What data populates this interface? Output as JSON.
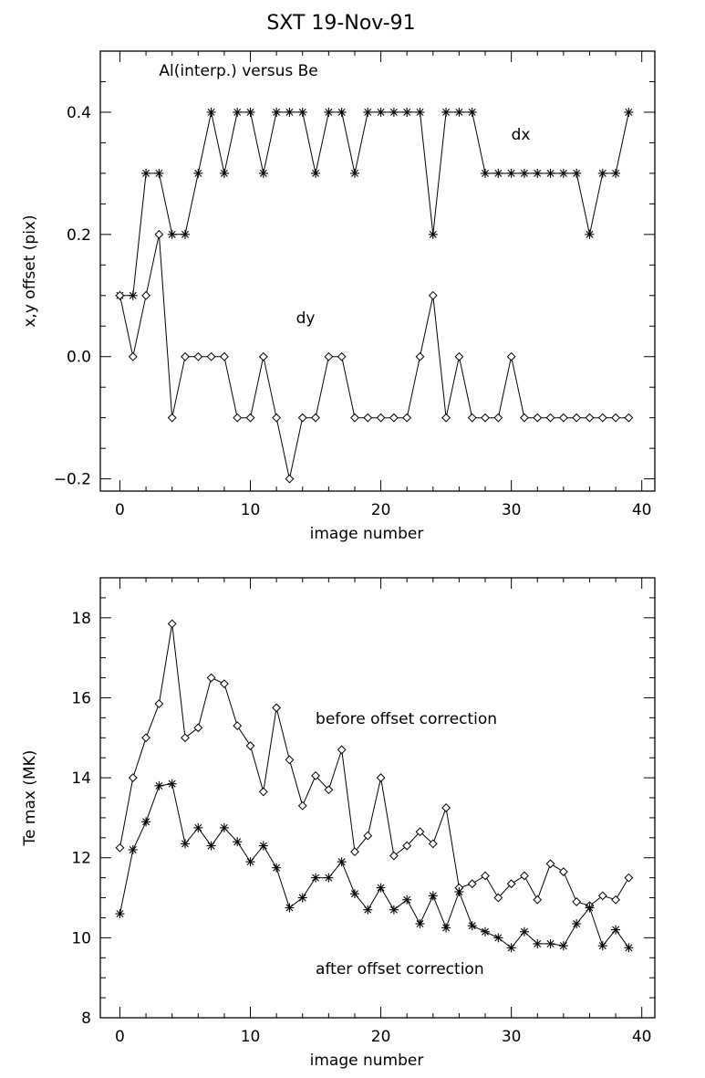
{
  "figure": {
    "title": "SXT   19-Nov-91"
  },
  "chart_data": [
    {
      "type": "line",
      "xlabel": "image number",
      "ylabel": "x,y offset (pix)",
      "xlim": [
        -1.5,
        41
      ],
      "ylim": [
        -0.22,
        0.5
      ],
      "xticks": [
        0,
        10,
        20,
        30,
        40
      ],
      "xtick_labels": [
        "0",
        "10",
        "20",
        "30",
        "40"
      ],
      "yticks": [
        -0.2,
        0.0,
        0.2,
        0.4
      ],
      "ytick_labels": [
        "−0.2",
        "0.0",
        "0.2",
        "0.4"
      ],
      "grid": false,
      "annotations": [
        {
          "text": "Al(interp.) versus Be",
          "x": 3,
          "y": 0.46
        },
        {
          "text": "dx",
          "x": 30,
          "y": 0.355
        },
        {
          "text": "dy",
          "x": 13.5,
          "y": 0.055
        }
      ],
      "series": [
        {
          "name": "dx",
          "marker": "star",
          "x": [
            0,
            1,
            2,
            3,
            4,
            5,
            6,
            7,
            8,
            9,
            10,
            11,
            12,
            13,
            14,
            15,
            16,
            17,
            18,
            19,
            20,
            21,
            22,
            23,
            24,
            25,
            26,
            27,
            28,
            29,
            30,
            31,
            32,
            33,
            34,
            35,
            36,
            37,
            38,
            39
          ],
          "values": [
            0.1,
            0.1,
            0.3,
            0.3,
            0.2,
            0.2,
            0.3,
            0.4,
            0.3,
            0.4,
            0.4,
            0.3,
            0.4,
            0.4,
            0.4,
            0.3,
            0.4,
            0.4,
            0.3,
            0.4,
            0.4,
            0.4,
            0.4,
            0.4,
            0.2,
            0.4,
            0.4,
            0.4,
            0.3,
            0.3,
            0.3,
            0.3,
            0.3,
            0.3,
            0.3,
            0.3,
            0.2,
            0.3,
            0.3,
            0.4
          ]
        },
        {
          "name": "dy",
          "marker": "diamond",
          "x": [
            0,
            1,
            2,
            3,
            4,
            5,
            6,
            7,
            8,
            9,
            10,
            11,
            12,
            13,
            14,
            15,
            16,
            17,
            18,
            19,
            20,
            21,
            22,
            23,
            24,
            25,
            26,
            27,
            28,
            29,
            30,
            31,
            32,
            33,
            34,
            35,
            36,
            37,
            38,
            39
          ],
          "values": [
            0.1,
            0.0,
            0.1,
            0.2,
            -0.1,
            0.0,
            0.0,
            0.0,
            0.0,
            -0.1,
            -0.1,
            0.0,
            -0.1,
            -0.2,
            -0.1,
            -0.1,
            0.0,
            0.0,
            -0.1,
            -0.1,
            -0.1,
            -0.1,
            -0.1,
            0.0,
            0.1,
            -0.1,
            0.0,
            -0.1,
            -0.1,
            -0.1,
            0.0,
            -0.1,
            -0.1,
            -0.1,
            -0.1,
            -0.1,
            -0.1,
            -0.1,
            -0.1,
            -0.1
          ]
        }
      ]
    },
    {
      "type": "line",
      "xlabel": "image number",
      "ylabel": "Te max (MK)",
      "xlim": [
        -1.5,
        41
      ],
      "ylim": [
        8,
        19
      ],
      "xticks": [
        0,
        10,
        20,
        30,
        40
      ],
      "xtick_labels": [
        "0",
        "10",
        "20",
        "30",
        "40"
      ],
      "yticks": [
        8,
        10,
        12,
        14,
        16,
        18
      ],
      "ytick_labels": [
        "8",
        "10",
        "12",
        "14",
        "16",
        "18"
      ],
      "grid": false,
      "annotations": [
        {
          "text": "before offset correction",
          "x": 15,
          "y": 15.35
        },
        {
          "text": "after offset correction",
          "x": 15,
          "y": 9.1
        }
      ],
      "series": [
        {
          "name": "before offset correction",
          "marker": "diamond",
          "x": [
            0,
            1,
            2,
            3,
            4,
            5,
            6,
            7,
            8,
            9,
            10,
            11,
            12,
            13,
            14,
            15,
            16,
            17,
            18,
            19,
            20,
            21,
            22,
            23,
            24,
            25,
            26,
            27,
            28,
            29,
            30,
            31,
            32,
            33,
            34,
            35,
            36,
            37,
            38,
            39
          ],
          "values": [
            12.25,
            14.0,
            15.0,
            15.85,
            17.85,
            15.0,
            15.25,
            16.5,
            16.35,
            15.3,
            14.8,
            13.65,
            15.75,
            14.45,
            13.3,
            14.05,
            13.7,
            14.7,
            12.15,
            12.55,
            14.0,
            12.05,
            12.3,
            12.65,
            12.35,
            13.25,
            11.25,
            11.35,
            11.55,
            11.0,
            11.35,
            11.55,
            10.95,
            11.85,
            11.65,
            10.9,
            10.8,
            11.05,
            10.95,
            11.5
          ]
        },
        {
          "name": "after offset correction",
          "marker": "star",
          "x": [
            0,
            1,
            2,
            3,
            4,
            5,
            6,
            7,
            8,
            9,
            10,
            11,
            12,
            13,
            14,
            15,
            16,
            17,
            18,
            19,
            20,
            21,
            22,
            23,
            24,
            25,
            26,
            27,
            28,
            29,
            30,
            31,
            32,
            33,
            34,
            35,
            36,
            37,
            38,
            39
          ],
          "values": [
            10.6,
            12.2,
            12.9,
            13.8,
            13.85,
            12.35,
            12.75,
            12.3,
            12.75,
            12.4,
            11.9,
            12.3,
            11.75,
            10.75,
            11.0,
            11.5,
            11.5,
            11.9,
            11.1,
            10.7,
            11.25,
            10.7,
            10.95,
            10.35,
            11.05,
            10.25,
            11.15,
            10.3,
            10.15,
            10.0,
            9.75,
            10.15,
            9.85,
            9.85,
            9.8,
            10.35,
            10.75,
            9.8,
            10.2,
            9.75
          ]
        }
      ]
    }
  ]
}
